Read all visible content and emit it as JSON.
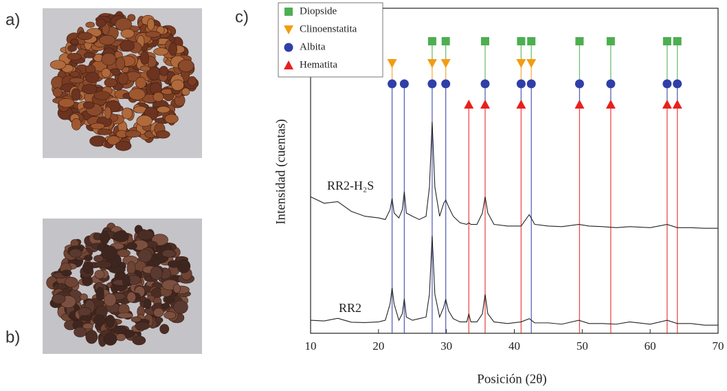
{
  "panel_labels": [
    "a)",
    "b)",
    "c)"
  ],
  "chart_data": {
    "type": "xrd",
    "xlabel": "Posición (2θ)",
    "ylabel": "Intensidad (cuentas)",
    "xlim": [
      10,
      70
    ],
    "xticks": [
      10,
      20,
      30,
      40,
      50,
      60,
      70
    ],
    "ylim": [
      0,
      100
    ],
    "x": [
      10,
      12,
      14,
      16,
      18,
      20,
      21,
      21.7,
      22,
      22.3,
      23,
      23.5,
      23.8,
      24.1,
      25,
      26,
      27,
      27.5,
      27.9,
      28.3,
      29,
      29.6,
      29.9,
      30.3,
      31,
      32,
      33,
      33.3,
      33.6,
      34.5,
      35.3,
      35.7,
      36.1,
      37,
      39,
      41,
      42.2,
      43,
      45,
      47,
      49.5,
      51,
      53,
      55,
      57,
      60,
      62.5,
      64,
      66,
      68,
      70
    ],
    "series": [
      {
        "name": "RR2-H₂S",
        "color": "#222222",
        "values": [
          42,
          40,
          40.5,
          37.5,
          36,
          35.5,
          35,
          38,
          41.5,
          37,
          35.5,
          38,
          43.6,
          37,
          36,
          35,
          36,
          45,
          65,
          45,
          36,
          40,
          41,
          39,
          36,
          34,
          33.5,
          34,
          33.5,
          33.5,
          37,
          42,
          37,
          33.5,
          33,
          33,
          36.5,
          33.5,
          33,
          32.8,
          33.5,
          33,
          32.8,
          32.5,
          32.8,
          32.5,
          33.5,
          32.5,
          32.5,
          32.3,
          32.3
        ]
      },
      {
        "name": "RR2",
        "color": "#222222",
        "values": [
          4,
          3.8,
          4.6,
          3.4,
          3.3,
          3.5,
          4,
          9,
          14,
          9,
          4,
          6,
          10.6,
          5,
          4,
          4.5,
          5,
          12,
          30,
          12,
          5,
          8,
          10.5,
          7,
          4.5,
          3.5,
          3.5,
          6,
          3.5,
          3.5,
          6,
          12,
          6,
          3.5,
          3,
          3.5,
          4.5,
          3.2,
          3.2,
          2.8,
          4,
          3,
          3,
          2.8,
          3.5,
          2.8,
          4,
          3,
          3,
          2.5,
          2.5
        ]
      }
    ],
    "phases": [
      {
        "name": "Diopside",
        "color": "#4caf50",
        "marker": "square",
        "positions": [
          27.9,
          29.9,
          35.7,
          41,
          42.5,
          49.6,
          54.2,
          62.5,
          64
        ]
      },
      {
        "name": "Clinoenstatita",
        "color": "#f39c12",
        "marker": "triangle-down",
        "positions": [
          22,
          27.9,
          29.9,
          41,
          42.5
        ]
      },
      {
        "name": "Albita",
        "color": "#2f3fa8",
        "marker": "circle",
        "positions": [
          22,
          23.8,
          27.9,
          29.9,
          35.7,
          41,
          42.5,
          49.6,
          54.2,
          62.5,
          64
        ]
      },
      {
        "name": "Hematita",
        "color": "#e8201e",
        "marker": "triangle",
        "positions": [
          33.3,
          35.7,
          41,
          49.6,
          54.2,
          62.5,
          64
        ]
      }
    ]
  }
}
